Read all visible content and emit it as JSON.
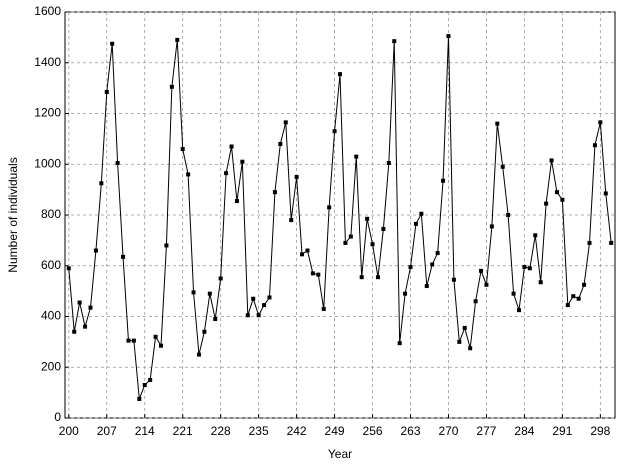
{
  "chart_data": {
    "type": "line",
    "xlabel": "Year",
    "ylabel": "Number of individuals",
    "x": [
      200,
      201,
      202,
      203,
      204,
      205,
      206,
      207,
      208,
      209,
      210,
      211,
      212,
      213,
      214,
      215,
      216,
      217,
      218,
      219,
      220,
      221,
      222,
      223,
      224,
      225,
      226,
      227,
      228,
      229,
      230,
      231,
      232,
      233,
      234,
      235,
      236,
      237,
      238,
      239,
      240,
      241,
      242,
      243,
      244,
      245,
      246,
      247,
      248,
      249,
      250,
      251,
      252,
      253,
      254,
      255,
      256,
      257,
      258,
      259,
      260,
      261,
      262,
      263,
      264,
      265,
      266,
      267,
      268,
      269,
      270,
      271,
      272,
      273,
      274,
      275,
      276,
      277,
      278,
      279,
      280,
      281,
      282,
      283,
      284,
      285,
      286,
      287,
      288,
      289,
      290,
      291,
      292,
      293,
      294,
      295,
      296,
      297,
      298,
      299,
      300
    ],
    "series": [
      {
        "name": "Number of individuals",
        "color": "#000000",
        "values": [
          590,
          340,
          455,
          360,
          435,
          660,
          925,
          1285,
          1475,
          1005,
          635,
          305,
          305,
          75,
          130,
          150,
          320,
          285,
          680,
          1305,
          1490,
          1060,
          960,
          495,
          250,
          340,
          490,
          390,
          550,
          965,
          1070,
          855,
          1010,
          405,
          470,
          405,
          445,
          475,
          890,
          1080,
          1165,
          780,
          950,
          645,
          660,
          570,
          565,
          430,
          830,
          1130,
          1355,
          690,
          715,
          1030,
          555,
          785,
          685,
          555,
          745,
          1005,
          1485,
          295,
          490,
          595,
          765,
          805,
          520,
          605,
          650,
          935,
          1505,
          545,
          300,
          355,
          275,
          460,
          580,
          525,
          755,
          1160,
          990,
          800,
          490,
          425,
          595,
          590,
          720,
          535,
          845,
          1015,
          890,
          860,
          445,
          480,
          470,
          525,
          690,
          1075,
          1165,
          885,
          690
        ]
      }
    ],
    "xlim": [
      199.3,
      300.7
    ],
    "xticks": [
      200,
      207,
      214,
      221,
      228,
      235,
      242,
      249,
      256,
      263,
      270,
      277,
      284,
      291,
      298
    ],
    "ylim": [
      0,
      1600
    ],
    "yticks": [
      0,
      200,
      400,
      600,
      800,
      1000,
      1200,
      1400,
      1600
    ],
    "grid": true
  }
}
